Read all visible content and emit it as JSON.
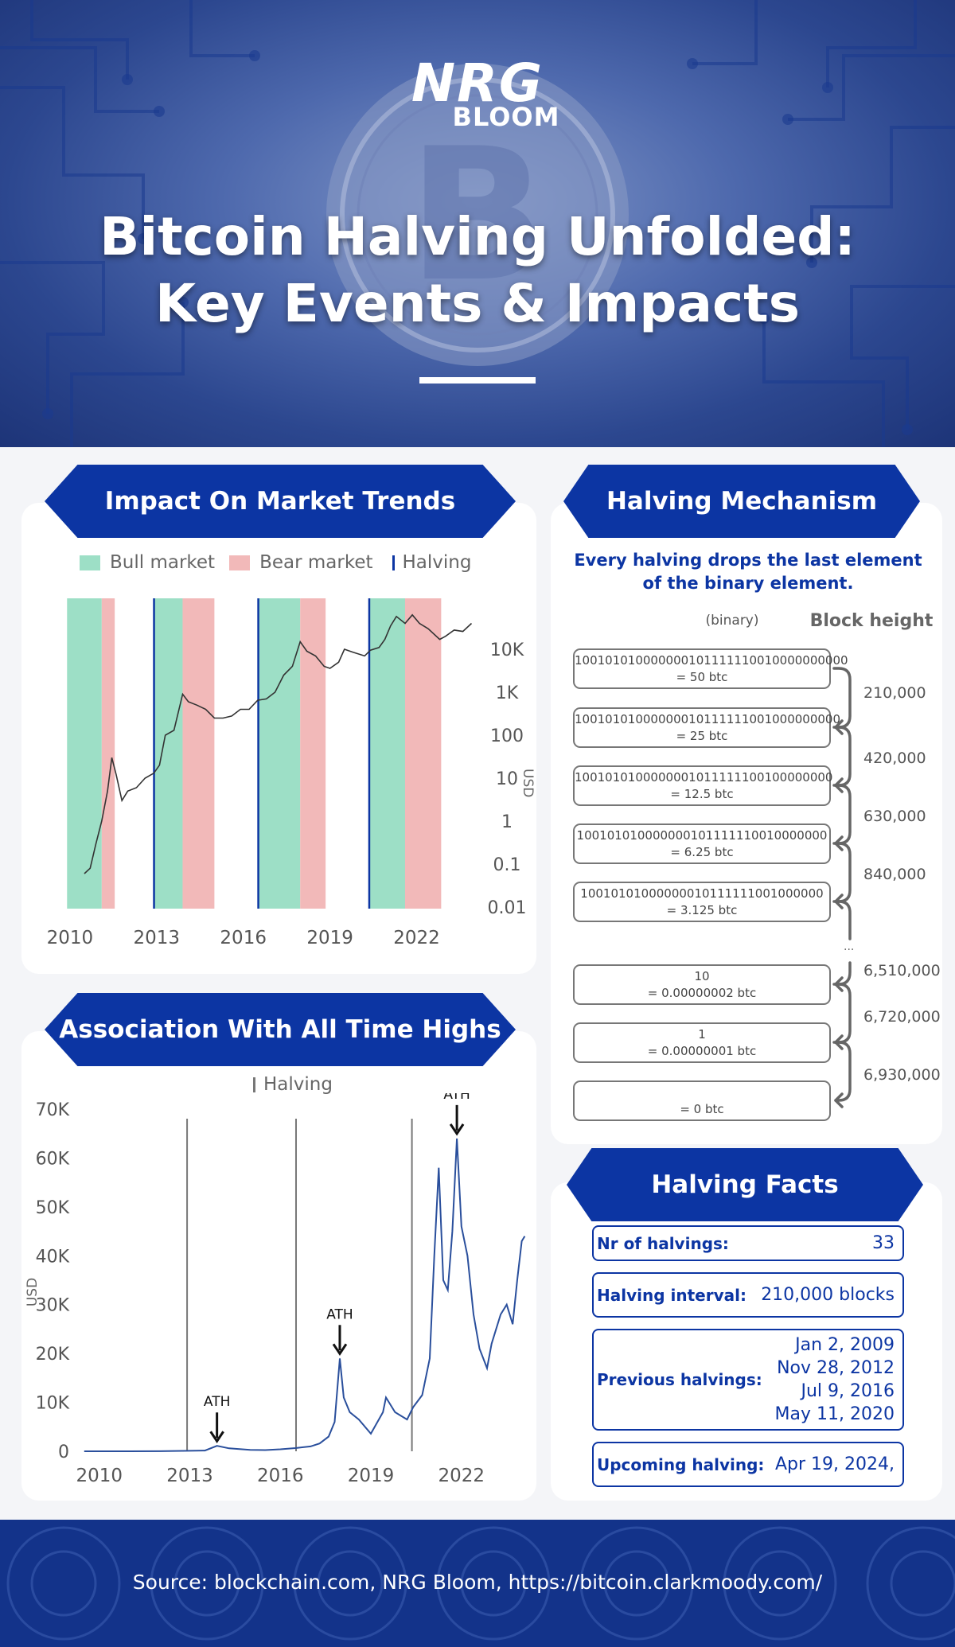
{
  "header": {
    "logo_line1": "NRG",
    "logo_line2": "BLOOM",
    "title": "Bitcoin Halving Unfolded: Key Events & Impacts"
  },
  "colors": {
    "brand_blue": "#0c35a3",
    "bull": "#9ddfc6",
    "bear": "#f2b9b9",
    "price_line": "#2a4f9c"
  },
  "sections": {
    "market_trends": "Impact On Market Trends",
    "mechanism": "Halving Mechanism",
    "ath": "Association With All Time Highs",
    "facts": "Halving Facts"
  },
  "chart_data": [
    {
      "type": "line",
      "name": "market_trends",
      "legend": [
        "Bull market",
        "Bear market",
        "Halving"
      ],
      "ylabel": "USD",
      "y_scale": "log",
      "ylim": [
        0.01,
        100000
      ],
      "x_ticks": [
        "2010",
        "2013",
        "2016",
        "2019",
        "2022"
      ],
      "y_ticks": [
        "10K",
        "1K",
        "100",
        "10",
        "1",
        "0.1",
        "0.01"
      ],
      "halvings": [
        2012.91,
        2016.52,
        2020.36
      ],
      "bull_periods": [
        [
          2009.9,
          2011.1
        ],
        [
          2012.91,
          2013.9
        ],
        [
          2016.52,
          2017.97
        ],
        [
          2020.36,
          2021.6
        ]
      ],
      "bear_periods": [
        [
          2011.1,
          2011.55
        ],
        [
          2013.9,
          2015.0
        ],
        [
          2017.97,
          2018.85
        ],
        [
          2021.6,
          2022.85
        ]
      ],
      "x": [
        2010.5,
        2010.7,
        2010.9,
        2011.1,
        2011.3,
        2011.45,
        2011.6,
        2011.8,
        2012.0,
        2012.3,
        2012.6,
        2012.9,
        2013.1,
        2013.3,
        2013.6,
        2013.9,
        2014.1,
        2014.4,
        2014.7,
        2015.0,
        2015.3,
        2015.6,
        2015.9,
        2016.2,
        2016.5,
        2016.8,
        2017.1,
        2017.4,
        2017.7,
        2017.97,
        2018.2,
        2018.5,
        2018.8,
        2019.0,
        2019.3,
        2019.5,
        2019.8,
        2020.2,
        2020.4,
        2020.7,
        2020.9,
        2021.1,
        2021.3,
        2021.6,
        2021.85,
        2022.1,
        2022.4,
        2022.8,
        2023.0,
        2023.3,
        2023.6,
        2023.9
      ],
      "values": [
        0.06,
        0.08,
        0.3,
        1,
        5,
        30,
        12,
        3,
        5,
        6,
        10,
        13,
        20,
        100,
        130,
        900,
        600,
        500,
        400,
        250,
        250,
        280,
        400,
        400,
        650,
        700,
        1000,
        2500,
        4000,
        15000,
        9000,
        7000,
        4000,
        3600,
        5000,
        10000,
        8500,
        7000,
        9500,
        11000,
        17000,
        35000,
        58000,
        40000,
        63000,
        40000,
        30000,
        17000,
        20000,
        28000,
        26000,
        40000
      ]
    },
    {
      "type": "line",
      "name": "ath",
      "legend": [
        "Halving"
      ],
      "ylabel": "USD",
      "ylim": [
        0,
        70000
      ],
      "x_ticks": [
        "2010",
        "2013",
        "2016",
        "2019",
        "2022"
      ],
      "y_ticks": [
        "70K",
        "60K",
        "50K",
        "40K",
        "30K",
        "20K",
        "10K",
        "0"
      ],
      "halvings": [
        2012.91,
        2016.52,
        2020.36
      ],
      "annotations": [
        {
          "label": "ATH",
          "x": 2013.9,
          "y": 1100
        },
        {
          "label": "ATH",
          "x": 2017.97,
          "y": 19000
        },
        {
          "label": "ATH",
          "x": 2021.85,
          "y": 64000
        }
      ],
      "x": [
        2009.5,
        2011.0,
        2012.0,
        2013.0,
        2013.5,
        2013.9,
        2014.3,
        2015.0,
        2015.5,
        2016.0,
        2016.5,
        2017.0,
        2017.3,
        2017.6,
        2017.8,
        2017.97,
        2018.1,
        2018.3,
        2018.6,
        2019.0,
        2019.4,
        2019.5,
        2019.8,
        2020.2,
        2020.4,
        2020.7,
        2020.95,
        2021.1,
        2021.25,
        2021.4,
        2021.55,
        2021.7,
        2021.85,
        2022.0,
        2022.2,
        2022.4,
        2022.6,
        2022.85,
        2023.0,
        2023.3,
        2023.5,
        2023.7,
        2023.85,
        2024.0,
        2024.1
      ],
      "values": [
        0,
        0,
        10,
        100,
        150,
        1100,
        600,
        300,
        250,
        400,
        650,
        1000,
        1600,
        3000,
        6000,
        19000,
        11000,
        8000,
        6500,
        3600,
        8000,
        11000,
        8000,
        6500,
        9000,
        11500,
        19000,
        40000,
        58000,
        35000,
        33000,
        45000,
        64000,
        46000,
        40000,
        28000,
        21000,
        17000,
        22000,
        28000,
        30000,
        26000,
        35000,
        43000,
        44000
      ]
    }
  ],
  "mechanism": {
    "subtitle": "Every halving drops the last element of the binary element.",
    "binary_label": "(binary)",
    "height_label": "Block height",
    "entries": [
      {
        "binary": "100101010000000101111110010000000000",
        "btc": "= 50 btc"
      },
      {
        "binary": "10010101000000010111111001000000000",
        "btc": "= 25 btc"
      },
      {
        "binary": "1001010100000001011111100100000000",
        "btc": "= 12.5 btc"
      },
      {
        "binary": "100101010000000101111110010000000",
        "btc": "= 6.25 btc"
      },
      {
        "binary": "10010101000000010111111001000000",
        "btc": "= 3.125 btc"
      },
      {
        "binary": "10",
        "btc": "= 0.00000002 btc"
      },
      {
        "binary": "1",
        "btc": "= 0.00000001 btc"
      },
      {
        "binary": "",
        "btc": "= 0 btc"
      }
    ],
    "heights": [
      "210,000",
      "420,000",
      "630,000",
      "840,000",
      "6,510,000",
      "6,720,000",
      "6,930,000"
    ],
    "ellipsis": "..."
  },
  "facts": {
    "count_label": "Nr of halvings:",
    "count_value": "33",
    "interval_label": "Halving interval:",
    "interval_value": "210,000 blocks",
    "previous_label": "Previous halvings:",
    "previous": [
      "Jan 2, 2009",
      "Nov 28, 2012",
      "Jul 9, 2016",
      "May 11, 2020"
    ],
    "upcoming_label": "Upcoming halving:",
    "upcoming_value": "Apr 19, 2024,"
  },
  "footer": {
    "source": "Source: blockchain.com, NRG Bloom, https://bitcoin.clarkmoody.com/"
  }
}
